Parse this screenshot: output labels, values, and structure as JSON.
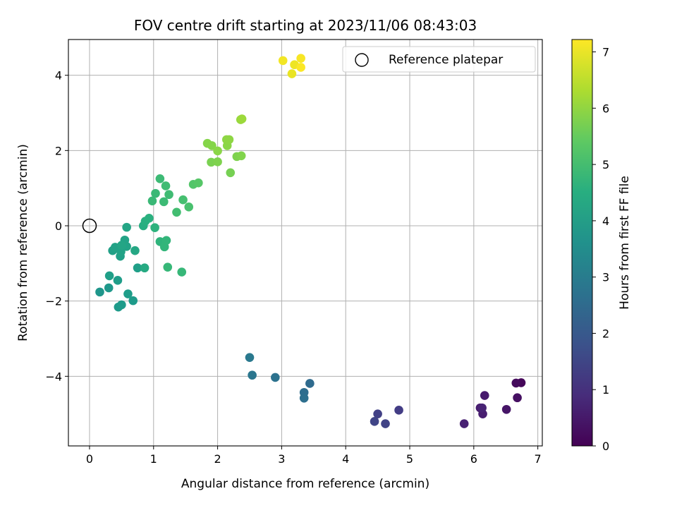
{
  "chart_data": {
    "type": "scatter",
    "title": "FOV centre drift starting at 2023/11/06 08:43:03",
    "xlabel": "Angular distance from reference (arcmin)",
    "ylabel": "Rotation from reference (arcmin)",
    "xlim": [
      -0.33,
      7.07
    ],
    "ylim": [
      -5.85,
      4.95
    ],
    "xticks": [
      0,
      1,
      2,
      3,
      4,
      5,
      6,
      7
    ],
    "yticks": [
      -4,
      -2,
      0,
      2,
      4
    ],
    "grid": true,
    "colorbar": {
      "label": "Hours from first FF file",
      "range": [
        0,
        7.22
      ],
      "ticks": [
        0,
        1,
        2,
        3,
        4,
        5,
        6,
        7
      ],
      "colormap": "viridis"
    },
    "legend": {
      "position": "top-right",
      "entries": [
        {
          "label": "Reference platepar",
          "marker": "open-circle"
        }
      ]
    },
    "reference_point": {
      "x": 0,
      "y": 0
    },
    "points": [
      {
        "x": 6.74,
        "y": -4.17,
        "c": 0.1
      },
      {
        "x": 6.66,
        "y": -4.18,
        "c": 0.2
      },
      {
        "x": 6.68,
        "y": -4.57,
        "c": 0.3
      },
      {
        "x": 6.51,
        "y": -4.88,
        "c": 0.4
      },
      {
        "x": 6.17,
        "y": -4.51,
        "c": 0.5
      },
      {
        "x": 6.1,
        "y": -4.84,
        "c": 0.55
      },
      {
        "x": 6.14,
        "y": -5.0,
        "c": 0.6
      },
      {
        "x": 5.85,
        "y": -5.26,
        "c": 0.65
      },
      {
        "x": 6.13,
        "y": -4.84,
        "c": 0.7
      },
      {
        "x": 4.83,
        "y": -4.9,
        "c": 1.3
      },
      {
        "x": 4.5,
        "y": -5.0,
        "c": 1.4
      },
      {
        "x": 4.62,
        "y": -5.26,
        "c": 1.45
      },
      {
        "x": 4.45,
        "y": -5.2,
        "c": 1.5
      },
      {
        "x": 3.44,
        "y": -4.19,
        "c": 2.5
      },
      {
        "x": 3.35,
        "y": -4.43,
        "c": 2.55
      },
      {
        "x": 3.35,
        "y": -4.58,
        "c": 2.6
      },
      {
        "x": 2.9,
        "y": -4.03,
        "c": 2.7
      },
      {
        "x": 2.54,
        "y": -3.97,
        "c": 2.8
      },
      {
        "x": 2.5,
        "y": -3.5,
        "c": 2.9
      },
      {
        "x": 0.16,
        "y": -1.76,
        "c": 3.8
      },
      {
        "x": 0.3,
        "y": -1.65,
        "c": 3.85
      },
      {
        "x": 0.45,
        "y": -2.16,
        "c": 3.9
      },
      {
        "x": 0.5,
        "y": -2.1,
        "c": 3.95
      },
      {
        "x": 0.68,
        "y": -1.99,
        "c": 3.95
      },
      {
        "x": 0.6,
        "y": -1.81,
        "c": 4.0
      },
      {
        "x": 0.44,
        "y": -1.45,
        "c": 4.0
      },
      {
        "x": 0.31,
        "y": -1.33,
        "c": 4.05
      },
      {
        "x": 0.75,
        "y": -1.12,
        "c": 4.05
      },
      {
        "x": 0.48,
        "y": -0.81,
        "c": 4.1
      },
      {
        "x": 0.36,
        "y": -0.66,
        "c": 4.1
      },
      {
        "x": 0.4,
        "y": -0.57,
        "c": 4.15
      },
      {
        "x": 0.49,
        "y": -0.69,
        "c": 4.15
      },
      {
        "x": 0.55,
        "y": -0.38,
        "c": 4.2
      },
      {
        "x": 0.58,
        "y": -0.55,
        "c": 4.2
      },
      {
        "x": 0.58,
        "y": -0.04,
        "c": 4.25
      },
      {
        "x": 0.5,
        "y": -0.52,
        "c": 4.25
      },
      {
        "x": 0.71,
        "y": -0.66,
        "c": 4.3
      },
      {
        "x": 0.86,
        "y": -1.12,
        "c": 4.4
      },
      {
        "x": 0.84,
        "y": 0.0,
        "c": 4.5
      },
      {
        "x": 0.87,
        "y": 0.12,
        "c": 4.55
      },
      {
        "x": 0.93,
        "y": 0.2,
        "c": 4.6
      },
      {
        "x": 1.02,
        "y": -0.05,
        "c": 4.65
      },
      {
        "x": 1.1,
        "y": -0.42,
        "c": 4.7
      },
      {
        "x": 1.17,
        "y": -0.56,
        "c": 4.75
      },
      {
        "x": 1.2,
        "y": -0.39,
        "c": 4.75
      },
      {
        "x": 1.22,
        "y": -1.1,
        "c": 4.8
      },
      {
        "x": 1.44,
        "y": -1.23,
        "c": 4.8
      },
      {
        "x": 0.98,
        "y": 0.66,
        "c": 4.85
      },
      {
        "x": 1.03,
        "y": 0.86,
        "c": 4.85
      },
      {
        "x": 1.16,
        "y": 0.64,
        "c": 4.9
      },
      {
        "x": 1.1,
        "y": 1.25,
        "c": 4.9
      },
      {
        "x": 1.19,
        "y": 1.06,
        "c": 4.95
      },
      {
        "x": 1.24,
        "y": 0.83,
        "c": 4.95
      },
      {
        "x": 1.36,
        "y": 0.36,
        "c": 5.0
      },
      {
        "x": 1.46,
        "y": 0.69,
        "c": 5.05
      },
      {
        "x": 1.55,
        "y": 0.5,
        "c": 5.1
      },
      {
        "x": 1.62,
        "y": 1.1,
        "c": 5.25
      },
      {
        "x": 1.7,
        "y": 1.14,
        "c": 5.3
      },
      {
        "x": 2.2,
        "y": 1.41,
        "c": 5.7
      },
      {
        "x": 1.9,
        "y": 1.69,
        "c": 5.75
      },
      {
        "x": 2.0,
        "y": 1.7,
        "c": 5.8
      },
      {
        "x": 2.3,
        "y": 1.84,
        "c": 5.8
      },
      {
        "x": 2.37,
        "y": 1.86,
        "c": 5.85
      },
      {
        "x": 1.84,
        "y": 2.19,
        "c": 5.9
      },
      {
        "x": 1.91,
        "y": 2.13,
        "c": 5.9
      },
      {
        "x": 2.0,
        "y": 1.99,
        "c": 5.95
      },
      {
        "x": 2.15,
        "y": 2.13,
        "c": 5.95
      },
      {
        "x": 2.14,
        "y": 2.29,
        "c": 6.0
      },
      {
        "x": 2.18,
        "y": 2.29,
        "c": 6.0
      },
      {
        "x": 2.36,
        "y": 2.82,
        "c": 6.1
      },
      {
        "x": 2.38,
        "y": 2.84,
        "c": 6.15
      },
      {
        "x": 3.16,
        "y": 4.04,
        "c": 7.0
      },
      {
        "x": 3.2,
        "y": 4.28,
        "c": 7.05
      },
      {
        "x": 3.02,
        "y": 4.39,
        "c": 7.1
      },
      {
        "x": 3.3,
        "y": 4.45,
        "c": 7.15
      },
      {
        "x": 3.3,
        "y": 4.21,
        "c": 7.2
      }
    ]
  }
}
